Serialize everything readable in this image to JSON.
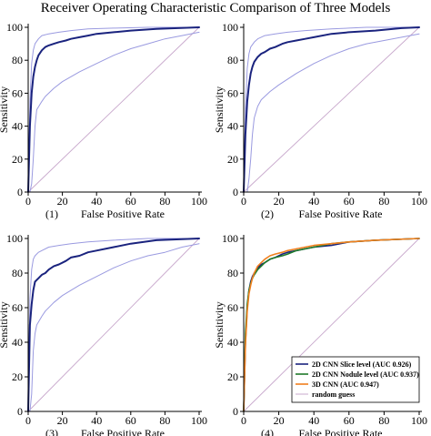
{
  "title": "Receiver Operating Characteristic Comparison of Three Models",
  "colors": {
    "axis": "#000000",
    "ci_band": "#9a9ae0",
    "random_guess": "#c8a8cc",
    "slice": "#1a237e",
    "nodule": "#1f7a2a",
    "cnn3d": "#f07f1e"
  },
  "chart_data": [
    {
      "type": "line",
      "panel_label": "(1)",
      "xlabel": "False Positive Rate",
      "ylabel": "Sensitivity",
      "xlim": [
        0,
        100
      ],
      "ylim": [
        0,
        100
      ],
      "xticks": [
        0,
        20,
        40,
        60,
        80,
        100
      ],
      "yticks": [
        0,
        20,
        40,
        60,
        80,
        100
      ],
      "series": [
        {
          "role": "random",
          "x": [
            0,
            100
          ],
          "y": [
            0,
            100
          ]
        },
        {
          "role": "ci_upper",
          "x": [
            0,
            1,
            2,
            3,
            4,
            6,
            8,
            12,
            18,
            25,
            35,
            50,
            70,
            100
          ],
          "y": [
            0,
            55,
            78,
            86,
            90,
            93,
            95,
            96,
            97,
            98,
            99,
            99.5,
            100,
            100
          ]
        },
        {
          "role": "roc",
          "x": [
            0,
            1,
            2,
            3,
            4,
            5,
            6,
            8,
            10,
            12,
            15,
            18,
            22,
            25,
            30,
            35,
            40,
            50,
            60,
            75,
            100
          ],
          "y": [
            0,
            40,
            60,
            70,
            76,
            80,
            83,
            86,
            88,
            89,
            90,
            91,
            92,
            93,
            94,
            95,
            96,
            97,
            98,
            99,
            100
          ]
        },
        {
          "role": "ci_lower",
          "x": [
            0,
            1,
            2,
            3,
            4,
            5,
            8,
            10,
            15,
            20,
            30,
            40,
            50,
            60,
            70,
            80,
            90,
            100
          ],
          "y": [
            0,
            0,
            5,
            20,
            40,
            50,
            55,
            58,
            63,
            67,
            73,
            78,
            83,
            87,
            90,
            93,
            95,
            97
          ]
        }
      ]
    },
    {
      "type": "line",
      "panel_label": "(2)",
      "xlabel": "False Positive Rate",
      "ylabel": "Sensitivity",
      "xlim": [
        0,
        100
      ],
      "ylim": [
        0,
        100
      ],
      "xticks": [
        0,
        20,
        40,
        60,
        80,
        100
      ],
      "yticks": [
        0,
        20,
        40,
        60,
        80,
        100
      ],
      "series": [
        {
          "role": "random",
          "x": [
            0,
            100
          ],
          "y": [
            0,
            100
          ]
        },
        {
          "role": "ci_upper",
          "x": [
            0,
            1,
            2,
            3,
            4,
            6,
            8,
            12,
            18,
            25,
            35,
            50,
            70,
            100
          ],
          "y": [
            0,
            50,
            75,
            84,
            88,
            91,
            93,
            95,
            96,
            97,
            98,
            99,
            100,
            100
          ]
        },
        {
          "role": "roc",
          "x": [
            0,
            1,
            2,
            3,
            4,
            5,
            6,
            8,
            10,
            12,
            15,
            18,
            22,
            25,
            30,
            35,
            40,
            50,
            60,
            75,
            90,
            100
          ],
          "y": [
            0,
            35,
            55,
            65,
            72,
            76,
            79,
            82,
            84,
            85,
            87,
            88,
            90,
            91,
            92,
            93,
            94,
            96,
            97,
            98,
            99.5,
            100
          ]
        },
        {
          "role": "ci_lower",
          "x": [
            0,
            2,
            3,
            4,
            5,
            6,
            8,
            10,
            15,
            20,
            30,
            40,
            50,
            60,
            70,
            80,
            90,
            100
          ],
          "y": [
            0,
            0,
            8,
            20,
            35,
            45,
            52,
            56,
            61,
            65,
            72,
            78,
            83,
            87,
            90,
            92,
            94,
            96
          ]
        }
      ]
    },
    {
      "type": "line",
      "panel_label": "(3)",
      "xlabel": "False Positive Rate",
      "ylabel": "Sensitivity",
      "xlim": [
        0,
        100
      ],
      "ylim": [
        0,
        100
      ],
      "xticks": [
        0,
        20,
        40,
        60,
        80,
        100
      ],
      "yticks": [
        0,
        20,
        40,
        60,
        80,
        100
      ],
      "series": [
        {
          "role": "random",
          "x": [
            0,
            100
          ],
          "y": [
            0,
            100
          ]
        },
        {
          "role": "ci_upper",
          "x": [
            0,
            1,
            2,
            3,
            4,
            6,
            8,
            12,
            18,
            25,
            35,
            50,
            70,
            100
          ],
          "y": [
            0,
            65,
            82,
            88,
            90,
            92,
            93,
            95,
            96,
            97,
            98,
            99,
            100,
            100
          ]
        },
        {
          "role": "roc",
          "x": [
            0,
            1,
            2,
            3,
            4,
            5,
            6,
            8,
            10,
            12,
            15,
            18,
            22,
            25,
            30,
            35,
            40,
            50,
            60,
            75,
            100
          ],
          "y": [
            0,
            50,
            62,
            70,
            75,
            76,
            77,
            79,
            80,
            82,
            84,
            85,
            87,
            89,
            90,
            92,
            93,
            95,
            97,
            99,
            100
          ]
        },
        {
          "role": "ci_lower",
          "x": [
            0,
            1,
            2,
            3,
            4,
            5,
            8,
            10,
            15,
            20,
            30,
            40,
            50,
            60,
            70,
            80,
            90,
            100
          ],
          "y": [
            0,
            0,
            10,
            35,
            45,
            50,
            55,
            58,
            63,
            67,
            73,
            78,
            83,
            87,
            90,
            92,
            95,
            97
          ]
        }
      ]
    },
    {
      "type": "line",
      "panel_label": "(4)",
      "xlabel": "False Positive Rate",
      "ylabel": "Sensitivity",
      "xlim": [
        0,
        100
      ],
      "ylim": [
        0,
        100
      ],
      "xticks": [
        0,
        20,
        40,
        60,
        80,
        100
      ],
      "yticks": [
        0,
        20,
        40,
        60,
        80,
        100
      ],
      "legend_position": "bottom-right",
      "series": [
        {
          "role": "random",
          "name": "random guess",
          "x": [
            0,
            100
          ],
          "y": [
            0,
            100
          ]
        },
        {
          "role": "slice",
          "name": "2D CNN Slice level (AUC 0.926)",
          "x": [
            0,
            1,
            2,
            3,
            4,
            5,
            6,
            8,
            10,
            12,
            15,
            18,
            22,
            25,
            30,
            35,
            40,
            50,
            60,
            75,
            100
          ],
          "y": [
            0,
            40,
            60,
            70,
            75,
            78,
            80,
            83,
            85,
            86,
            88,
            89,
            91,
            92,
            93,
            94,
            95,
            96,
            98,
            99,
            100
          ]
        },
        {
          "role": "nodule",
          "name": "2D CNN Nodule level (AUC 0.937)",
          "x": [
            0,
            1,
            2,
            3,
            4,
            5,
            6,
            8,
            10,
            12,
            15,
            18,
            22,
            25,
            30,
            35,
            40,
            50,
            60,
            75,
            100
          ],
          "y": [
            0,
            45,
            62,
            70,
            74,
            77,
            79,
            82,
            84,
            86,
            88,
            89,
            90,
            91,
            93,
            94,
            95,
            97,
            98,
            99,
            100
          ]
        },
        {
          "role": "cnn3d",
          "name": "3D CNN (AUC 0.947)",
          "x": [
            0,
            1,
            2,
            3,
            4,
            5,
            6,
            8,
            10,
            12,
            15,
            18,
            22,
            25,
            30,
            35,
            40,
            50,
            60,
            75,
            100
          ],
          "y": [
            0,
            38,
            58,
            68,
            73,
            77,
            80,
            84,
            86,
            88,
            90,
            91,
            92,
            93,
            94,
            95,
            96,
            97,
            98,
            99,
            100
          ]
        }
      ]
    }
  ]
}
